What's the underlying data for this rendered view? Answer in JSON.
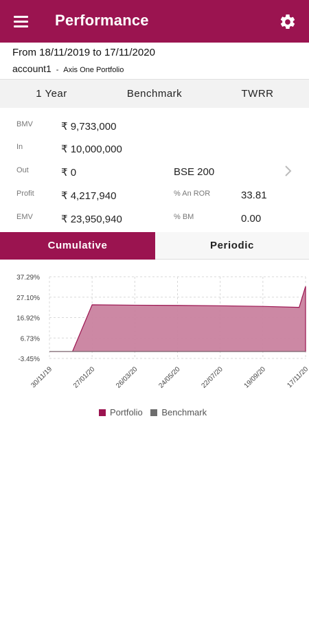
{
  "header": {
    "title": "Performance",
    "menu_icon": "menu-icon",
    "settings_icon": "gear-icon",
    "color": "#9b1450"
  },
  "info": {
    "date_range": "From 18/11/2019 to 17/11/2020",
    "account_name": "account1",
    "account_separator": "-",
    "portfolio_name": "Axis One Portfolio"
  },
  "filters": {
    "period": "1 Year",
    "benchmark": "Benchmark",
    "method": "TWRR"
  },
  "stats": {
    "bmv": {
      "label": "BMV",
      "value": "₹ 9,733,000"
    },
    "in": {
      "label": "In",
      "value": "₹ 10,000,000"
    },
    "out": {
      "label": "Out",
      "value": "₹ 0"
    },
    "benchmark_name": "BSE 200",
    "profit": {
      "label": "Profit",
      "value": "₹ 4,217,940"
    },
    "an_ror": {
      "label": "% An ROR",
      "value": "33.81"
    },
    "emv": {
      "label": "EMV",
      "value": "₹ 23,950,940"
    },
    "bm": {
      "label": "% BM",
      "value": "0.00"
    }
  },
  "tabs": {
    "cumulative": "Cumulative",
    "periodic": "Periodic",
    "selected": "Cumulative"
  },
  "chart_data": {
    "type": "area",
    "y_ticks": [
      "37.29%",
      "27.10%",
      "16.92%",
      "6.73%",
      "-3.45%"
    ],
    "ylim": [
      -3.45,
      37.29
    ],
    "x_ticks": [
      "30/11/19",
      "27/01/20",
      "26/03/20",
      "24/05/20",
      "22/07/20",
      "19/09/20",
      "17/11/20"
    ],
    "series": [
      {
        "name": "Portfolio",
        "color": "#9b1450",
        "x": [
          0,
          0.54,
          1.0,
          2.0,
          3.0,
          4.0,
          5.0,
          5.85,
          6.0
        ],
        "y": [
          0,
          0,
          23.3,
          23.1,
          23.0,
          22.8,
          22.5,
          22.0,
          32.5
        ]
      },
      {
        "name": "Benchmark",
        "color": "#6d6d6d",
        "x": [
          0,
          6.0
        ],
        "y": [
          0,
          0
        ]
      }
    ],
    "legend": [
      "Portfolio",
      "Benchmark"
    ],
    "grid": true,
    "legend_position": "bottom"
  }
}
